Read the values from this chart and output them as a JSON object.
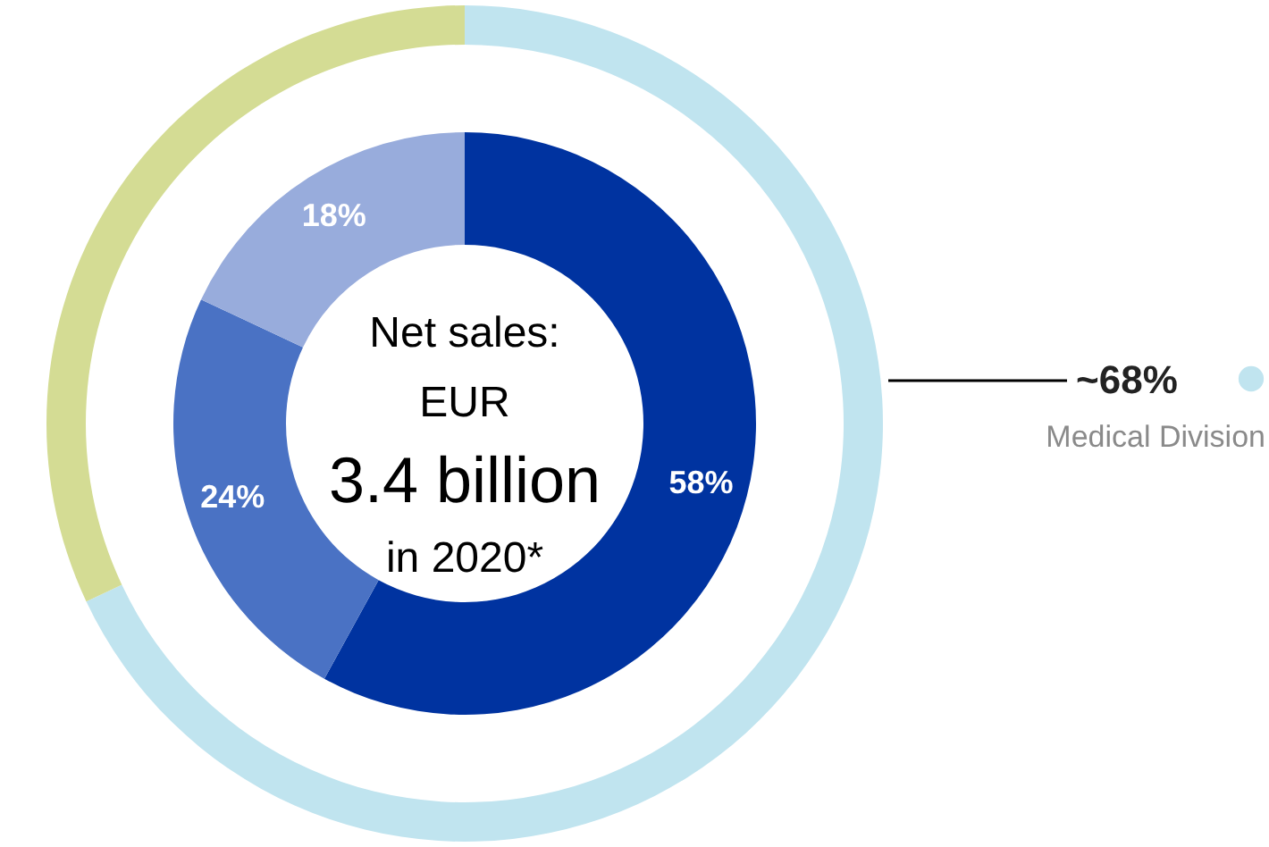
{
  "chart_data": {
    "type": "donut",
    "annotations": [
      "Net sales:",
      "EUR",
      "3.4 billion",
      "in 2020*"
    ],
    "series": [
      {
        "values": [
          58,
          24,
          18
        ],
        "colors": [
          "#0033a0",
          "#4a72c4",
          "#98acdc"
        ],
        "value_labels": [
          "58%",
          "24%",
          "18%"
        ]
      },
      {
        "name": "Medical Division",
        "color": "#c0e4ef",
        "values": [
          68,
          32
        ],
        "colors": [
          "#c0e4ef",
          "#d4dc94"
        ],
        "value_labels": [
          "~68%",
          null
        ]
      }
    ]
  }
}
